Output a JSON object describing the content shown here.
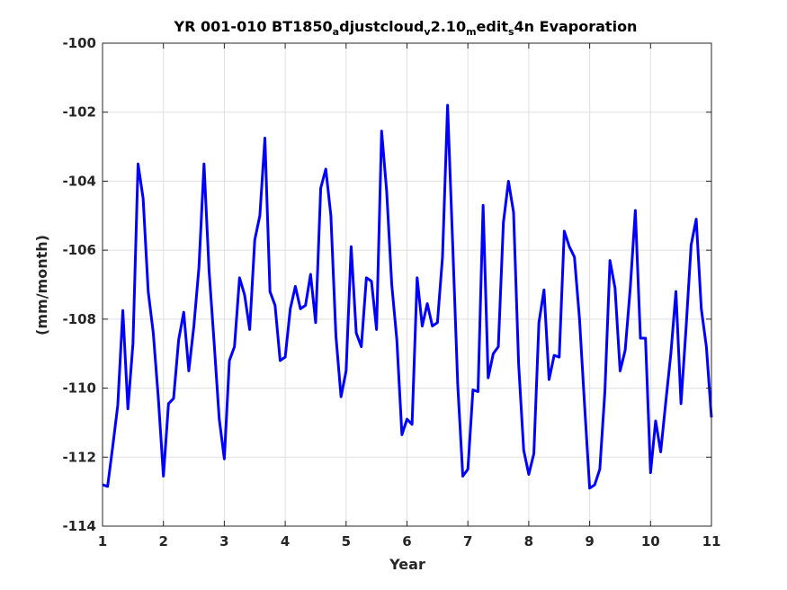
{
  "chart_data": {
    "type": "line",
    "title": {
      "segments": [
        {
          "text": "YR 001-010 BT1850",
          "sub": false
        },
        {
          "text": "a",
          "sub": true
        },
        {
          "text": "djustcloud",
          "sub": false
        },
        {
          "text": "v",
          "sub": true
        },
        {
          "text": "2.10",
          "sub": false
        },
        {
          "text": "m",
          "sub": true
        },
        {
          "text": "edit",
          "sub": false
        },
        {
          "text": "s",
          "sub": true
        },
        {
          "text": "4n Evaporation",
          "sub": false
        }
      ]
    },
    "xlabel": "Year",
    "ylabel": "(mm/month)",
    "xlim": [
      1,
      11
    ],
    "ylim": [
      -114,
      -100
    ],
    "xticks": [
      1,
      2,
      3,
      4,
      5,
      6,
      7,
      8,
      9,
      10,
      11
    ],
    "yticks": [
      -114,
      -112,
      -110,
      -108,
      -106,
      -104,
      -102,
      -100
    ],
    "xtick_labels": [
      "1",
      "2",
      "3",
      "4",
      "5",
      "6",
      "7",
      "8",
      "9",
      "10",
      "11"
    ],
    "ytick_labels": [
      "-114",
      "-112",
      "-110",
      "-108",
      "-106",
      "-104",
      "-102",
      "-100"
    ],
    "grid": true,
    "line_color": "#0000ff",
    "series": [
      {
        "y": [
          -112.8,
          -112.85,
          -111.7,
          -110.5,
          -107.75,
          -110.6,
          -108.7,
          -103.5,
          -104.5,
          -107.2,
          -108.4,
          -110.3,
          -112.55,
          -110.45,
          -110.3,
          -108.6,
          -107.8,
          -109.5,
          -108.2,
          -106.5,
          -103.5,
          -106.6,
          -108.7,
          -110.9,
          -112.05,
          -109.2,
          -108.8,
          -106.8,
          -107.3,
          -108.3,
          -105.7,
          -105.0,
          -102.75,
          -107.2,
          -107.6,
          -109.2,
          -109.1,
          -107.7,
          -107.05,
          -107.7,
          -107.6,
          -106.7,
          -108.1,
          -104.2,
          -103.65,
          -105.0,
          -108.5,
          -110.25,
          -109.5,
          -105.9,
          -108.4,
          -108.8,
          -106.8,
          -106.9,
          -108.3,
          -102.55,
          -104.3,
          -107.0,
          -108.6,
          -111.35,
          -110.9,
          -111.05,
          -106.8,
          -108.2,
          -107.55,
          -108.2,
          -108.1,
          -106.2,
          -101.8,
          -105.8,
          -109.9,
          -112.55,
          -112.35,
          -110.05,
          -110.1,
          -104.7,
          -109.7,
          -109.0,
          -108.8,
          -105.2,
          -104.0,
          -104.9,
          -109.3,
          -111.8,
          -112.5,
          -111.9,
          -108.1,
          -107.15,
          -109.75,
          -109.05,
          -109.1,
          -105.45,
          -105.9,
          -106.2,
          -108.0,
          -110.5,
          -112.9,
          -112.8,
          -112.35,
          -110.1,
          -106.3,
          -107.1,
          -109.5,
          -108.9,
          -107.1,
          -104.85,
          -108.55,
          -108.55,
          -112.45,
          -110.95,
          -111.85,
          -110.4,
          -109.0,
          -107.2,
          -110.45,
          -108.25,
          -105.85,
          -105.1,
          -107.7,
          -108.8,
          -110.85
        ]
      }
    ]
  }
}
